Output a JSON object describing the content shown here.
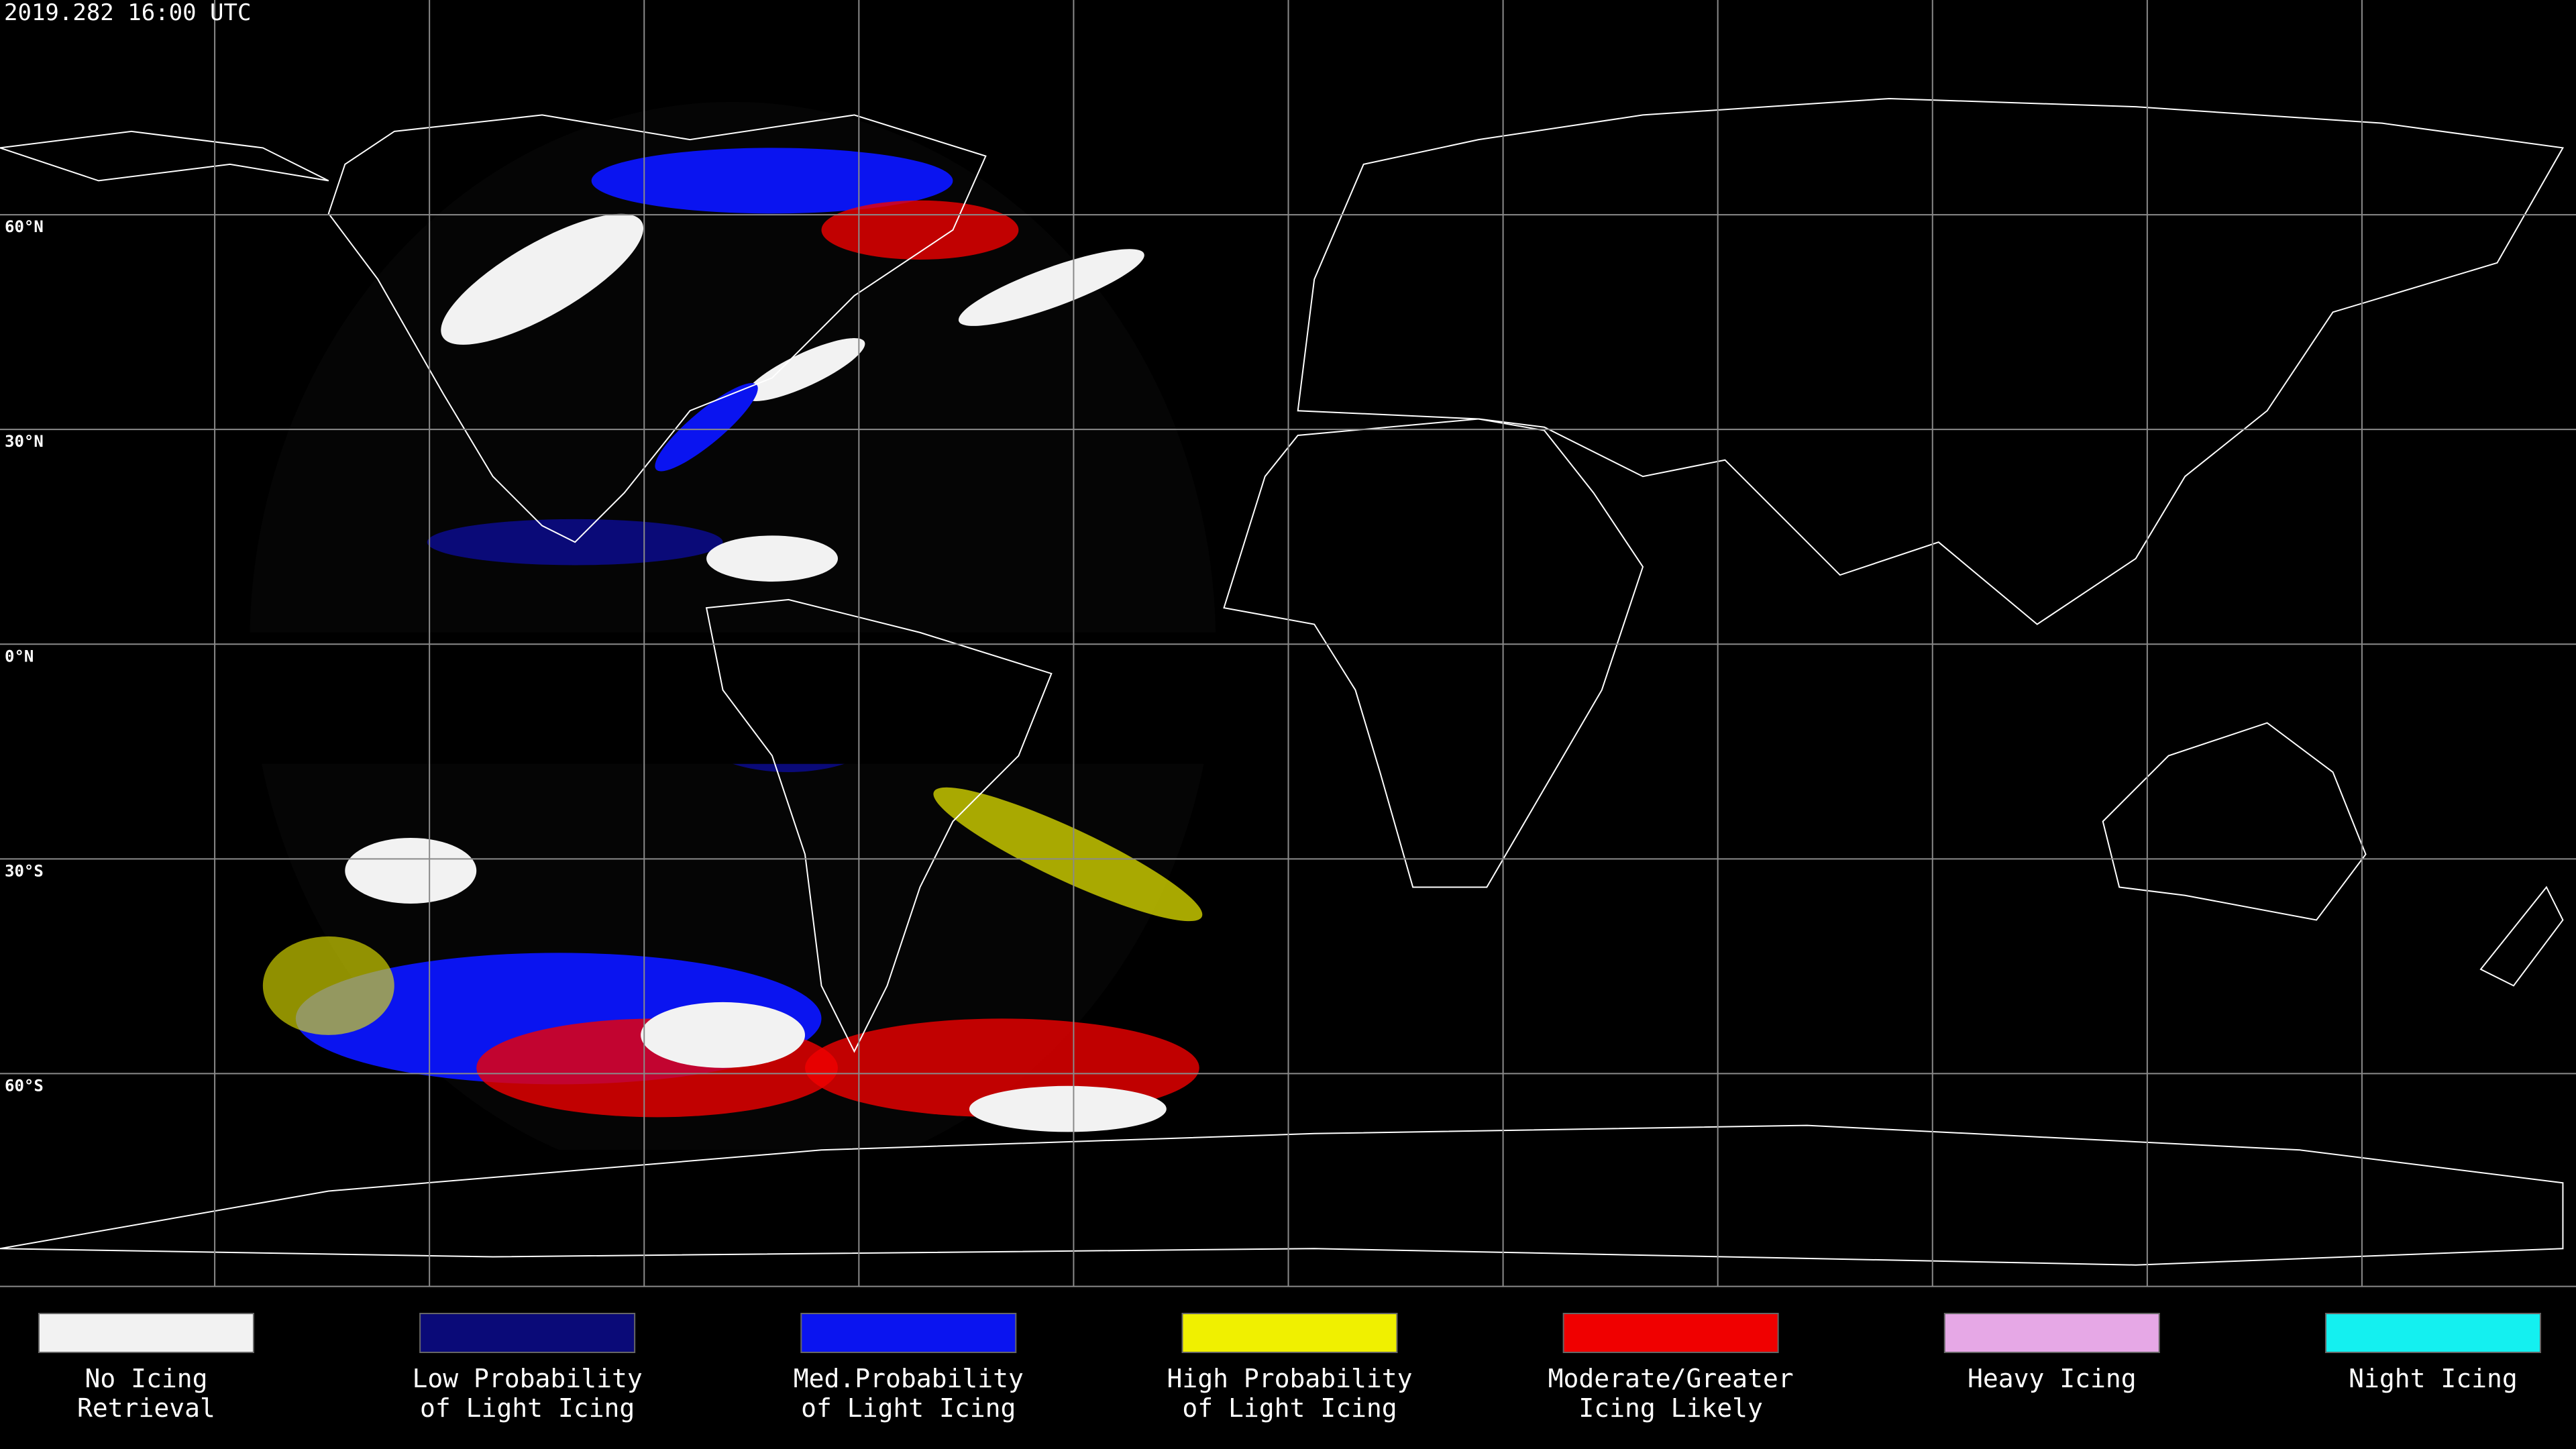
{
  "title": "2019.282 16:00 UTC",
  "latitude_labels": [
    "60°N",
    "30°N",
    "0°N",
    "30°S",
    "60°S"
  ],
  "legend": [
    {
      "lines": [
        "No Icing",
        "Retrieval"
      ],
      "color": "#f2f2f2"
    },
    {
      "lines": [
        "Low Probability",
        "of Light Icing"
      ],
      "color": "#0a0a78"
    },
    {
      "lines": [
        "Med.Probability",
        "of Light Icing"
      ],
      "color": "#0a14f0"
    },
    {
      "lines": [
        "High Probability",
        "of Light Icing"
      ],
      "color": "#f0f000"
    },
    {
      "lines": [
        "Moderate/Greater",
        "Icing Likely"
      ],
      "color": "#f00000"
    },
    {
      "lines": [
        "Heavy Icing"
      ],
      "color": "#e6a8e6"
    },
    {
      "lines": [
        "Night Icing"
      ],
      "color": "#14f0f0"
    }
  ]
}
